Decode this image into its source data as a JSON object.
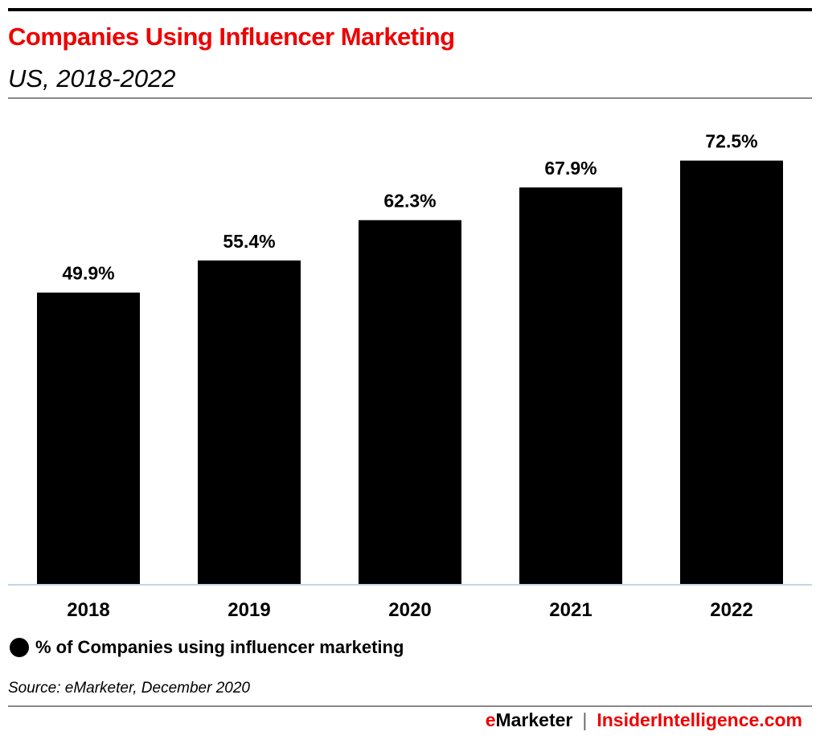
{
  "header": {
    "title": "Companies Using Influencer Marketing",
    "subtitle": "US, 2018-2022"
  },
  "chart_data": {
    "type": "bar",
    "title": "Companies Using Influencer Marketing",
    "subtitle": "US, 2018-2022",
    "categories": [
      "2018",
      "2019",
      "2020",
      "2021",
      "2022"
    ],
    "series": [
      {
        "name": "% of Companies using influencer marketing",
        "values": [
          49.9,
          55.4,
          62.3,
          67.9,
          72.5
        ],
        "color": "#000000"
      }
    ],
    "data_labels": [
      "49.9%",
      "55.4%",
      "62.3%",
      "67.9%",
      "72.5%"
    ],
    "xlabel": "",
    "ylabel": "",
    "ylim": [
      0,
      80
    ],
    "grid": false,
    "legend_position": "bottom-left"
  },
  "legend": {
    "label": "% of Companies using influencer marketing"
  },
  "footer": {
    "source": "Source: eMarketer, December 2020",
    "brand_e": "e",
    "brand_rest": "Marketer",
    "separator": "|",
    "site": "InsiderIntelligence.com"
  },
  "colors": {
    "accent": "#ee0000",
    "bar": "#000000",
    "axis": "#c8d4e6"
  }
}
